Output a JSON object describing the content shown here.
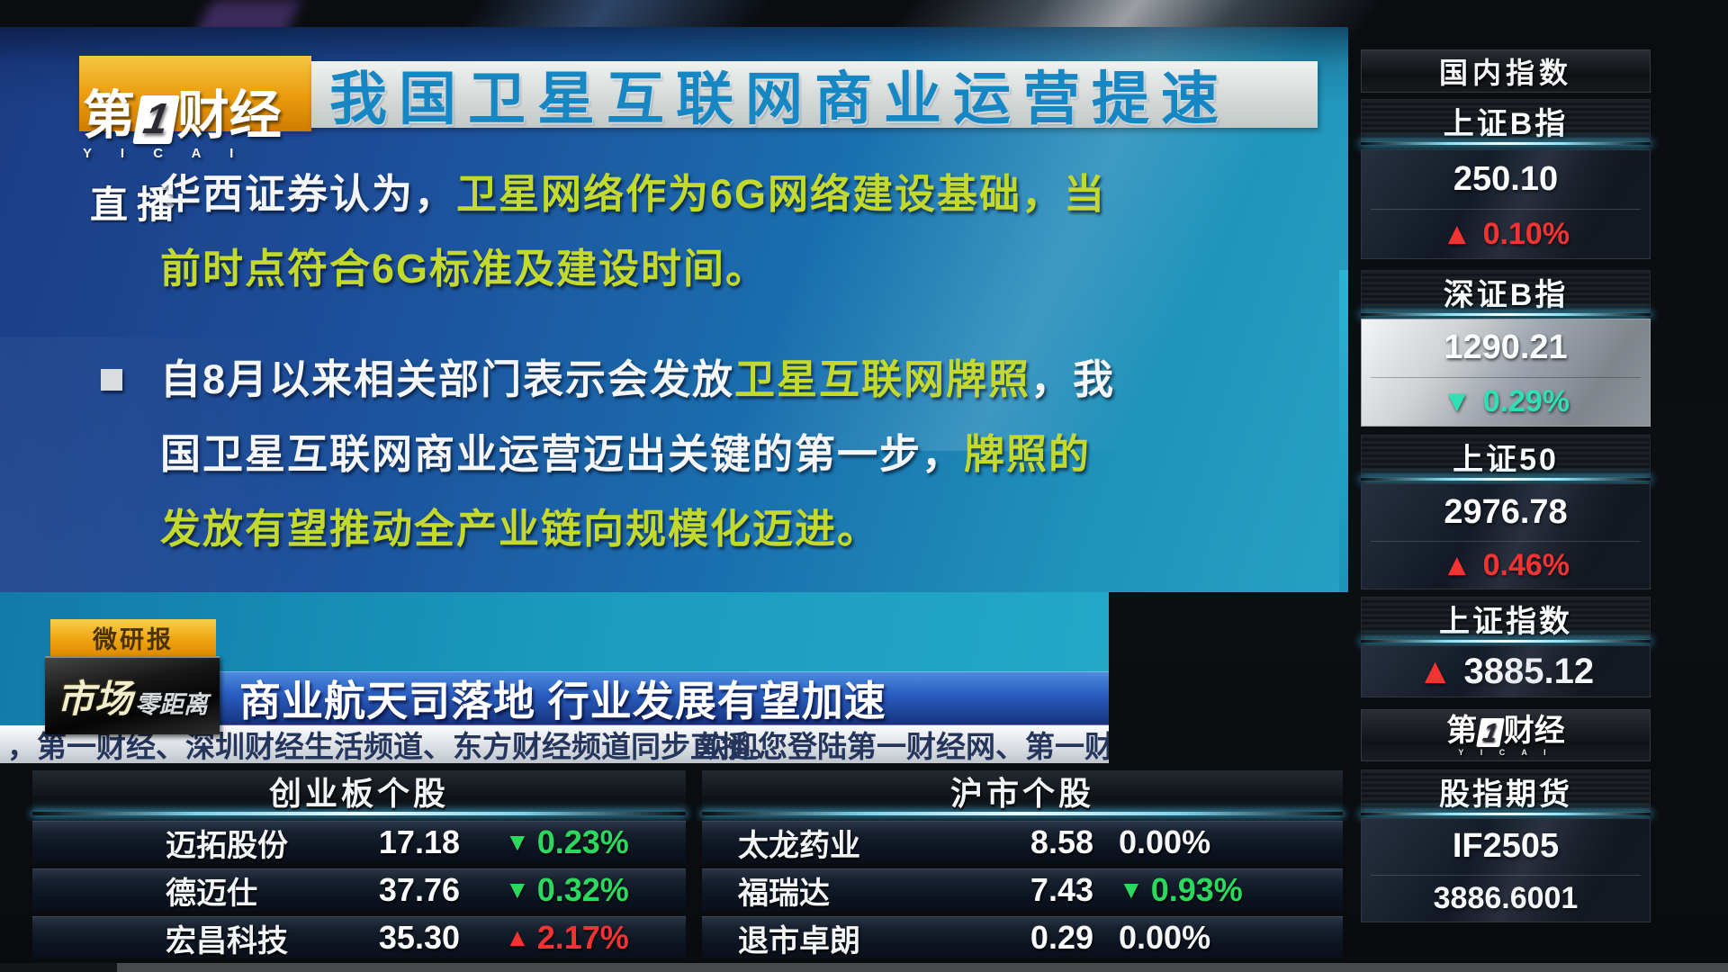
{
  "brand": {
    "cn_left": "第",
    "one": "1",
    "cn_right": "财经",
    "en": "Y I C A I",
    "live": "直播"
  },
  "slide": {
    "title": "我国卫星互联网商业运营提速",
    "bullets": [
      {
        "marker": false,
        "lines": [
          [
            {
              "t": "华西证券认为，",
              "c": "w"
            },
            {
              "t": "卫星网络作为6G网络建设基础，当",
              "c": "y"
            }
          ],
          [
            {
              "t": "前时点符合6G标准及建设时间。",
              "c": "y"
            }
          ]
        ]
      },
      {
        "marker": true,
        "lines": [
          [
            {
              "t": "自8月以来相关部门表示会发放",
              "c": "w"
            },
            {
              "t": "卫星互联网牌照",
              "c": "y"
            },
            {
              "t": "，我",
              "c": "w"
            }
          ],
          [
            {
              "t": "国卫星互联网商业运营迈出关键的第一步，",
              "c": "w"
            },
            {
              "t": "牌照的",
              "c": "y"
            }
          ],
          [
            {
              "t": "发放有望推动全产业链向规模化迈进。",
              "c": "y"
            }
          ]
        ]
      }
    ]
  },
  "lower": {
    "badge": "微研报",
    "program_name_part1": "市场",
    "program_name_part2": "零距离",
    "headline": "商业航天司落地 行业发展有望加速",
    "ticker_left": "，第一财经、深圳财经生活频道、东方财经频道同步直播。",
    "ticker_right": "欢迎您登陆第一财经网、第一财"
  },
  "tables": [
    {
      "title": "创业板个股",
      "rows": [
        {
          "name": "迈拓股份",
          "price": "17.18",
          "dir": "down",
          "pct": "0.23%"
        },
        {
          "name": "德迈仕",
          "price": "37.76",
          "dir": "down",
          "pct": "0.32%"
        },
        {
          "name": "宏昌科技",
          "price": "35.30",
          "dir": "up",
          "pct": "2.17%"
        }
      ]
    },
    {
      "title": "沪市个股",
      "rows": [
        {
          "name": "太龙药业",
          "price": "8.58",
          "dir": "flat",
          "pct": "0.00%"
        },
        {
          "name": "福瑞达",
          "price": "7.43",
          "dir": "down",
          "pct": "0.93%"
        },
        {
          "name": "退市卓朗",
          "price": "0.29",
          "dir": "flat",
          "pct": "0.00%"
        }
      ]
    }
  ],
  "sidebar": {
    "header": "国内指数",
    "indices": [
      {
        "name": "上证B指",
        "value": "250.10",
        "dir": "up",
        "pct": "0.10%",
        "style": "dark"
      },
      {
        "name": "深证B指",
        "value": "1290.21",
        "dir": "down",
        "pct": "0.29%",
        "style": "light"
      },
      {
        "name": "上证50",
        "value": "2976.78",
        "dir": "up",
        "pct": "0.46%",
        "style": "dark"
      },
      {
        "name": "上证指数",
        "value": "3885.12",
        "dir": "up",
        "pct": null,
        "style": "inline"
      }
    ],
    "futures": {
      "header": "股指期货",
      "contract": "IF2505",
      "value": "3886.6001"
    }
  },
  "colors": {
    "up_red": "#f23333",
    "down_green": "#2bd95e",
    "down_teal": "#2fe0b4",
    "highlight_yellow": "#c3d92e",
    "title_blue": "#1787c4",
    "flat_white": "#f4f6f8"
  }
}
